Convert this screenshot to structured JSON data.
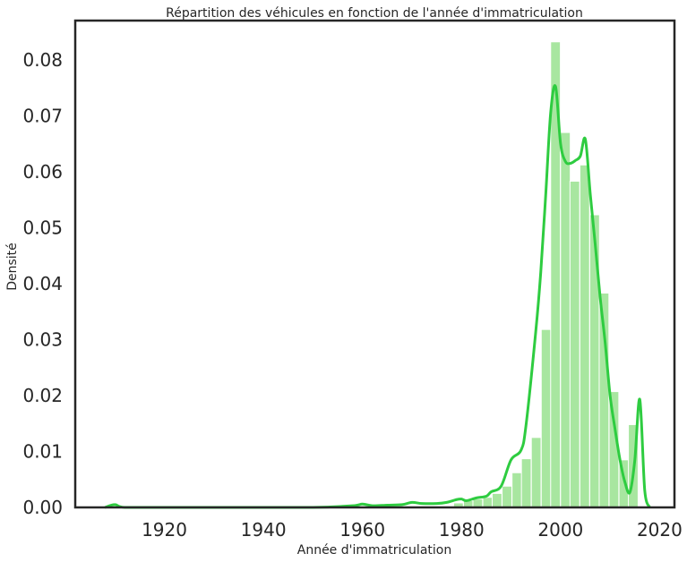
{
  "chart_data": {
    "type": "bar",
    "title": "Répartition des véhicules en fonction de l'année d'immatriculation",
    "xlabel": "Année d'immatriculation",
    "ylabel": "Densité",
    "xlim": [
      1902,
      2023
    ],
    "ylim": [
      0,
      0.087
    ],
    "xticks": [
      "1920",
      "1940",
      "1960",
      "1980",
      "2000",
      "2020"
    ],
    "yticks": [
      "0.00",
      "0.01",
      "0.02",
      "0.03",
      "0.04",
      "0.05",
      "0.06",
      "0.07",
      "0.08"
    ],
    "grid": false,
    "colors": {
      "bars": "#a8e6a0",
      "kde": "#2ecc40",
      "frame": "#262626"
    },
    "histogram": {
      "bin_width": 1.96,
      "bins": [
        {
          "x": 1978.4,
          "density": 0.0008
        },
        {
          "x": 1980.4,
          "density": 0.0012
        },
        {
          "x": 1982.3,
          "density": 0.0015
        },
        {
          "x": 1984.3,
          "density": 0.0018
        },
        {
          "x": 1986.2,
          "density": 0.0025
        },
        {
          "x": 1988.2,
          "density": 0.0038
        },
        {
          "x": 1990.2,
          "density": 0.0062
        },
        {
          "x": 1992.1,
          "density": 0.0087
        },
        {
          "x": 1994.1,
          "density": 0.0125
        },
        {
          "x": 1996.1,
          "density": 0.0318
        },
        {
          "x": 1998.0,
          "density": 0.0832
        },
        {
          "x": 2000.0,
          "density": 0.067
        },
        {
          "x": 2001.9,
          "density": 0.0583
        },
        {
          "x": 2003.9,
          "density": 0.0612
        },
        {
          "x": 2005.9,
          "density": 0.0523
        },
        {
          "x": 2007.8,
          "density": 0.0383
        },
        {
          "x": 2009.8,
          "density": 0.0207
        },
        {
          "x": 2011.8,
          "density": 0.0085
        },
        {
          "x": 2013.7,
          "density": 0.0148
        }
      ]
    },
    "kde": {
      "x": [
        1908,
        1910,
        1912,
        1920,
        1930,
        1940,
        1950,
        1958,
        1960,
        1962,
        1965,
        1968,
        1970,
        1972,
        1975,
        1977,
        1979,
        1980,
        1981,
        1983,
        1985,
        1986,
        1988,
        1990,
        1992,
        1993,
        1995,
        1996,
        1997,
        1998,
        1999,
        2000,
        2001,
        2002,
        2003,
        2004,
        2005,
        2006,
        2007,
        2008,
        2009,
        2010,
        2011,
        2012,
        2013,
        2014,
        2015,
        2016,
        2017,
        2018
      ],
      "y": [
        0,
        0.0005,
        0,
        0,
        0,
        0,
        0,
        0.0003,
        0.0006,
        0.0003,
        0.0004,
        0.0005,
        0.0009,
        0.0007,
        0.0007,
        0.0009,
        0.0014,
        0.0015,
        0.0012,
        0.0017,
        0.002,
        0.0028,
        0.0038,
        0.0085,
        0.0102,
        0.0145,
        0.0315,
        0.042,
        0.0558,
        0.0705,
        0.0752,
        0.065,
        0.0618,
        0.0615,
        0.062,
        0.0628,
        0.0658,
        0.056,
        0.047,
        0.0375,
        0.0295,
        0.02,
        0.014,
        0.0085,
        0.0045,
        0.0027,
        0.0085,
        0.0193,
        0.003,
        0
      ]
    }
  }
}
